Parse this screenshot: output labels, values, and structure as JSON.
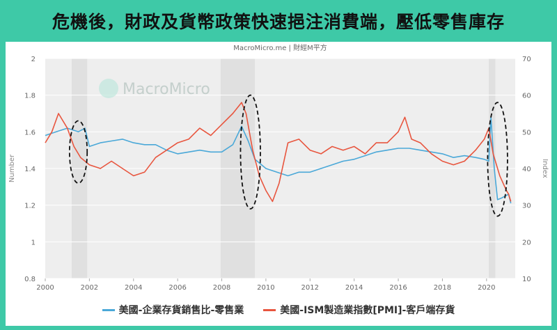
{
  "title": "危機後，財政及貨幣政策快速挹注消費端，壓低零售庫存",
  "source": "MacroMicro.me | 財經M平方",
  "watermark": "MacroMicro",
  "colors": {
    "background": "#3ec9a7",
    "series1": "#4aa8d8",
    "series2": "#e8553e",
    "recession": "#e6e6e6"
  },
  "chart_data": {
    "type": "line",
    "xlim": [
      2000,
      2021.3
    ],
    "x_ticks": [
      "2000",
      "2002",
      "2004",
      "2006",
      "2008",
      "2010",
      "2012",
      "2014",
      "2016",
      "2018",
      "2020"
    ],
    "left_axis": {
      "label": "Number",
      "ylim": [
        0.8,
        2.0
      ],
      "ticks": [
        "0.8",
        "1",
        "1.2",
        "1.4",
        "1.6",
        "1.8",
        "2"
      ]
    },
    "right_axis": {
      "label": "Index",
      "ylim": [
        10,
        70
      ],
      "ticks": [
        "10",
        "20",
        "30",
        "40",
        "50",
        "60",
        "70"
      ]
    },
    "recession_shading": [
      [
        2001.2,
        2001.9
      ],
      [
        2007.95,
        2009.5
      ],
      [
        2020.1,
        2020.4
      ]
    ],
    "series": [
      {
        "name": "美國-企業存貨銷售比-零售業",
        "axis": "left",
        "x": [
          2000,
          2000.5,
          2001,
          2001.5,
          2001.8,
          2002,
          2002.5,
          2003,
          2003.5,
          2004,
          2004.5,
          2005,
          2005.5,
          2006,
          2006.5,
          2007,
          2007.5,
          2008,
          2008.5,
          2008.9,
          2009.2,
          2009.5,
          2010,
          2010.5,
          2011,
          2011.5,
          2012,
          2012.5,
          2013,
          2013.5,
          2014,
          2014.5,
          2015,
          2015.5,
          2016,
          2016.5,
          2017,
          2017.5,
          2018,
          2018.5,
          2019,
          2019.5,
          2019.9,
          2020.1,
          2020.2,
          2020.35,
          2020.5,
          2020.7,
          2021,
          2021.1
        ],
        "values": [
          1.58,
          1.6,
          1.62,
          1.6,
          1.62,
          1.52,
          1.54,
          1.55,
          1.56,
          1.54,
          1.53,
          1.53,
          1.5,
          1.48,
          1.49,
          1.5,
          1.49,
          1.49,
          1.53,
          1.63,
          1.55,
          1.45,
          1.4,
          1.38,
          1.36,
          1.38,
          1.38,
          1.4,
          1.42,
          1.44,
          1.45,
          1.47,
          1.49,
          1.5,
          1.51,
          1.51,
          1.5,
          1.49,
          1.48,
          1.46,
          1.47,
          1.46,
          1.45,
          1.44,
          1.68,
          1.4,
          1.23,
          1.24,
          1.26,
          1.21
        ]
      },
      {
        "name": "美國-ISM製造業指數[PMI]-客戶端存貨",
        "axis": "right",
        "x": [
          2000,
          2000.3,
          2000.6,
          2001,
          2001.3,
          2001.6,
          2002,
          2002.5,
          2003,
          2003.5,
          2004,
          2004.5,
          2005,
          2005.5,
          2006,
          2006.5,
          2007,
          2007.5,
          2008,
          2008.5,
          2008.9,
          2009.1,
          2009.4,
          2009.7,
          2010,
          2010.3,
          2010.6,
          2011,
          2011.5,
          2012,
          2012.5,
          2013,
          2013.5,
          2014,
          2014.5,
          2015,
          2015.5,
          2016,
          2016.3,
          2016.6,
          2017,
          2017.5,
          2018,
          2018.5,
          2019,
          2019.5,
          2019.9,
          2020.1,
          2020.3,
          2020.6,
          2020.9,
          2021,
          2021.1
        ],
        "values": [
          47,
          50,
          55,
          51,
          46,
          43,
          41,
          40,
          42,
          40,
          38,
          39,
          43,
          45,
          47,
          48,
          51,
          49,
          52,
          55,
          58,
          55,
          45,
          38,
          34,
          31,
          36,
          47,
          48,
          45,
          44,
          46,
          45,
          46,
          44,
          47,
          47,
          50,
          54,
          48,
          47,
          44,
          42,
          41,
          42,
          45,
          48,
          51,
          44,
          38,
          34,
          33,
          31
        ]
      }
    ]
  }
}
